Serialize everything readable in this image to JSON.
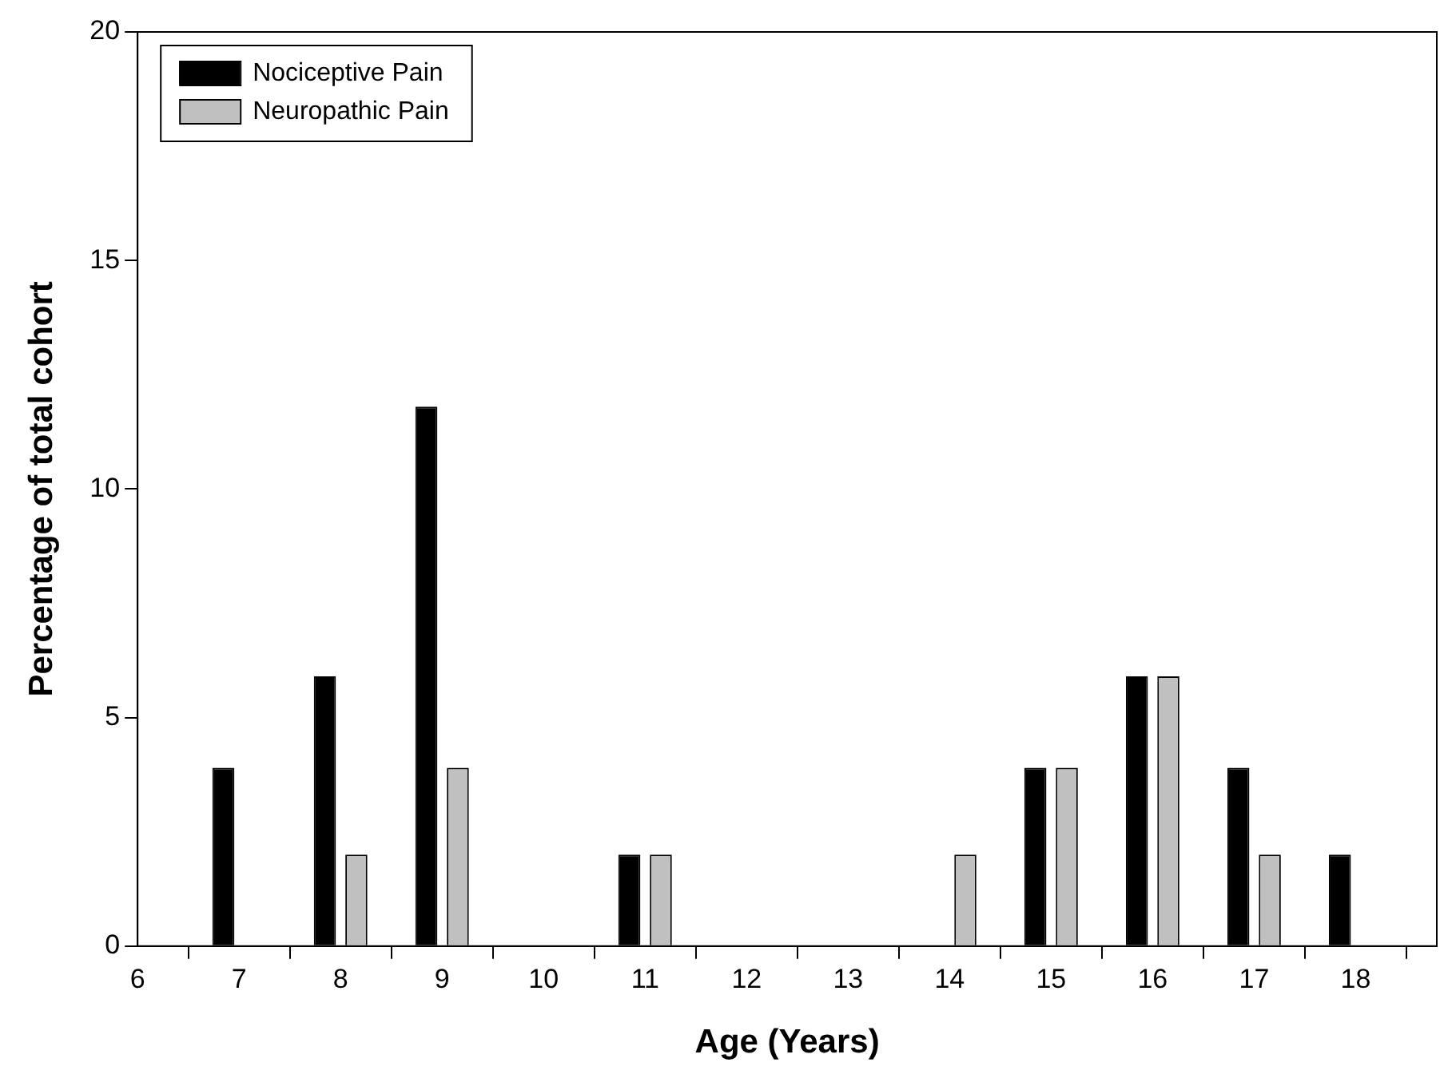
{
  "chart_data": {
    "type": "bar",
    "xlabel": "Age (Years)",
    "ylabel": "Percentage of total cohort",
    "x": [
      7,
      8,
      9,
      11,
      14,
      15,
      16,
      17,
      18
    ],
    "series": [
      {
        "name": "Nociceptive Pain",
        "color": "#000000",
        "values": [
          3.9,
          5.9,
          11.8,
          2.0,
          null,
          3.9,
          5.9,
          3.9,
          2.0
        ]
      },
      {
        "name": "Neuropathic Pain",
        "color": "#c0c0c0",
        "values": [
          null,
          2.0,
          3.9,
          2.0,
          2.0,
          3.9,
          5.9,
          2.0,
          null
        ]
      }
    ],
    "xlim": [
      6,
      18.8
    ],
    "xticks": [
      6,
      7,
      8,
      9,
      10,
      11,
      12,
      13,
      14,
      15,
      16,
      17,
      18
    ],
    "ylim": [
      0,
      20
    ],
    "yticks": [
      0,
      5,
      10,
      15,
      20
    ],
    "grid": false,
    "legend": "top left"
  }
}
